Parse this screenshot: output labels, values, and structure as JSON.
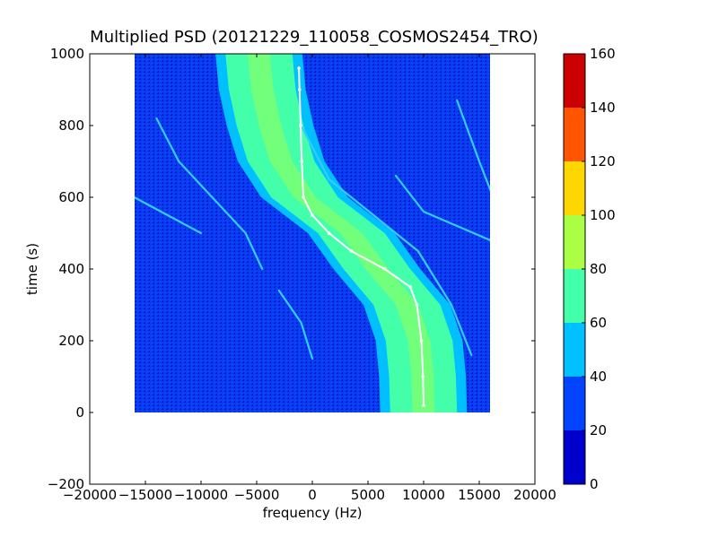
{
  "chart_data": {
    "type": "heatmap",
    "title": "Multiplied PSD (20121229_110058_COSMOS2454_TRO)",
    "xlabel": "frequency (Hz)",
    "ylabel": "time (s)",
    "xlim": [
      -20000,
      20000
    ],
    "ylim": [
      -200,
      1000
    ],
    "x_ticks": [
      -20000,
      -15000,
      -10000,
      -5000,
      0,
      5000,
      10000,
      15000,
      20000
    ],
    "y_ticks": [
      -200,
      0,
      200,
      400,
      600,
      800,
      1000
    ],
    "data_extent": {
      "freq_min": -16000,
      "freq_max": 16000,
      "time_min": 0,
      "time_max": 1000
    },
    "colorbar": {
      "range": [
        0,
        160
      ],
      "ticks": [
        0,
        20,
        40,
        60,
        80,
        100,
        120,
        140,
        160
      ],
      "bins": [
        {
          "from": 0,
          "to": 20,
          "color": "#0000cc"
        },
        {
          "from": 20,
          "to": 40,
          "color": "#0044ff"
        },
        {
          "from": 40,
          "to": 60,
          "color": "#00c0ff"
        },
        {
          "from": 60,
          "to": 80,
          "color": "#44ffaa"
        },
        {
          "from": 80,
          "to": 100,
          "color": "#aaff44"
        },
        {
          "from": 100,
          "to": 120,
          "color": "#ffd700"
        },
        {
          "from": 120,
          "to": 140,
          "color": "#ff5500"
        },
        {
          "from": 140,
          "to": 160,
          "color": "#cc0000"
        }
      ]
    },
    "background_level": 30,
    "main_signal": {
      "description_level": 65,
      "center_curve": [
        {
          "t": 1000,
          "f": -4800
        },
        {
          "t": 900,
          "f": -4500
        },
        {
          "t": 800,
          "f": -3800
        },
        {
          "t": 700,
          "f": -2800
        },
        {
          "t": 600,
          "f": -700
        },
        {
          "t": 500,
          "f": 3500
        },
        {
          "t": 400,
          "f": 5800
        },
        {
          "t": 300,
          "f": 8500
        },
        {
          "t": 200,
          "f": 9600
        },
        {
          "t": 100,
          "f": 9900
        },
        {
          "t": 0,
          "f": 10000
        }
      ],
      "half_width_hz": 3000,
      "core_half_width_hz": 1000
    },
    "fit_curve": [
      {
        "t": 960,
        "f": -1200
      },
      {
        "t": 900,
        "f": -1150
      },
      {
        "t": 800,
        "f": -1050
      },
      {
        "t": 700,
        "f": -950
      },
      {
        "t": 600,
        "f": -800
      },
      {
        "t": 550,
        "f": 0
      },
      {
        "t": 500,
        "f": 1500
      },
      {
        "t": 450,
        "f": 3500
      },
      {
        "t": 400,
        "f": 6500
      },
      {
        "t": 350,
        "f": 8800
      },
      {
        "t": 300,
        "f": 9400
      },
      {
        "t": 200,
        "f": 9800
      },
      {
        "t": 100,
        "f": 9950
      },
      {
        "t": 20,
        "f": 10000
      }
    ],
    "harmonic_lines": [
      [
        {
          "t": 820,
          "f": -14000
        },
        {
          "t": 700,
          "f": -12000
        },
        {
          "t": 600,
          "f": -9000
        },
        {
          "t": 500,
          "f": -6000
        },
        {
          "t": 400,
          "f": -4500
        }
      ],
      [
        {
          "t": 800,
          "f": -1000
        },
        {
          "t": 650,
          "f": 1500
        },
        {
          "t": 550,
          "f": 5500
        },
        {
          "t": 450,
          "f": 9500
        },
        {
          "t": 300,
          "f": 12500
        },
        {
          "t": 160,
          "f": 14300
        }
      ],
      [
        {
          "t": 660,
          "f": 7500
        },
        {
          "t": 560,
          "f": 10000
        },
        {
          "t": 480,
          "f": 16000
        }
      ],
      [
        {
          "t": 600,
          "f": -16000
        },
        {
          "t": 550,
          "f": -13000
        },
        {
          "t": 500,
          "f": -10000
        }
      ],
      [
        {
          "t": 340,
          "f": -3000
        },
        {
          "t": 250,
          "f": -1000
        },
        {
          "t": 150,
          "f": 0
        }
      ],
      [
        {
          "t": 870,
          "f": 13000
        },
        {
          "t": 700,
          "f": 15000
        },
        {
          "t": 620,
          "f": 16000
        }
      ]
    ]
  }
}
